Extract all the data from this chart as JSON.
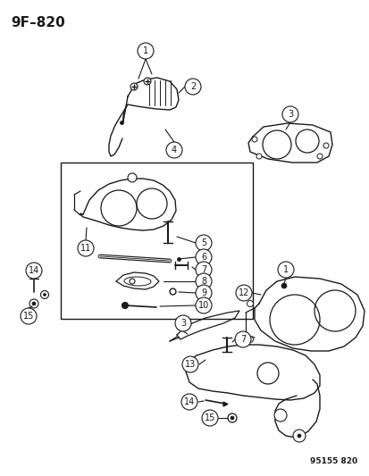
{
  "title": "9F–820",
  "watermark": "95155 820",
  "bg_color": "#ffffff",
  "line_color": "#1a1a1a",
  "fig_w": 4.14,
  "fig_h": 5.33,
  "dpi": 100
}
